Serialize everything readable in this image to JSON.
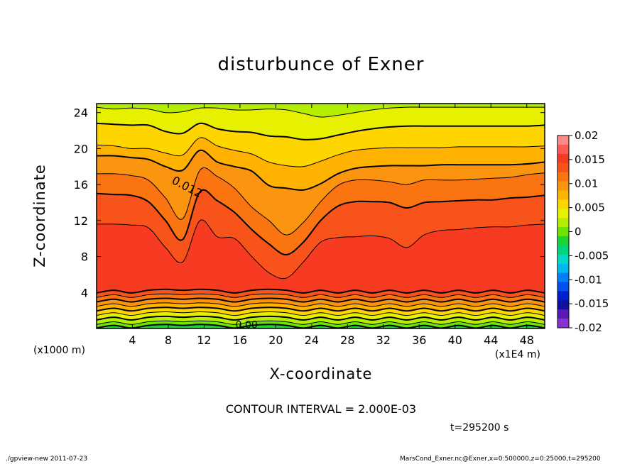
{
  "chart_data": {
    "type": "contour",
    "title": "disturbunce of Exner",
    "xlabel": "X-coordinate",
    "ylabel": "Z-coordinate",
    "x_unit_note": "(x1000 m)",
    "x_scale_note": "(x1E4 m)",
    "xlim": [
      0,
      50
    ],
    "ylim": [
      0,
      25
    ],
    "xticks": [
      4,
      8,
      12,
      16,
      20,
      24,
      28,
      32,
      36,
      40,
      44,
      48
    ],
    "yticks": [
      4,
      8,
      12,
      16,
      20,
      24
    ],
    "contour_labels": [
      "0.012",
      "0.00"
    ],
    "contour_interval": "CONTOUR INTERVAL = 2.000E-03",
    "time": "t=295200 s",
    "colorbar": {
      "ticks": [
        "0.02",
        "0.015",
        "0.01",
        "0.005",
        "0",
        "-0.005",
        "-0.01",
        "-0.015",
        "-0.02"
      ],
      "range": [
        -0.02,
        0.02
      ],
      "levels": [
        {
          "value": 0.02,
          "color": "#ff8a8a"
        },
        {
          "value": 0.018,
          "color": "#ff5a55"
        },
        {
          "value": 0.016,
          "color": "#f73a22"
        },
        {
          "value": 0.014,
          "color": "#f8531b"
        },
        {
          "value": 0.012,
          "color": "#fb7412"
        },
        {
          "value": 0.01,
          "color": "#fb9510"
        },
        {
          "value": 0.008,
          "color": "#ffb200"
        },
        {
          "value": 0.006,
          "color": "#ffd500"
        },
        {
          "value": 0.004,
          "color": "#e6f000"
        },
        {
          "value": 0.002,
          "color": "#b4ee00"
        },
        {
          "value": 0.0,
          "color": "#6ee400"
        },
        {
          "value": -0.002,
          "color": "#1cd432"
        },
        {
          "value": -0.004,
          "color": "#00d47a"
        },
        {
          "value": -0.006,
          "color": "#00d8c8"
        },
        {
          "value": -0.008,
          "color": "#00b8f0"
        },
        {
          "value": -0.01,
          "color": "#0080f8"
        },
        {
          "value": -0.012,
          "color": "#0050f0"
        },
        {
          "value": -0.014,
          "color": "#0020d0"
        },
        {
          "value": -0.016,
          "color": "#1010a0"
        },
        {
          "value": -0.018,
          "color": "#5a1ab8"
        },
        {
          "value": -0.02,
          "color": "#8a32d0"
        }
      ]
    },
    "surface_profiles": [
      {
        "level": 0.002,
        "z": [
          24.6,
          24.4,
          24.5,
          24.4,
          24.0,
          24.1,
          24.5,
          24.5,
          24.3,
          24.3,
          24.4,
          24.3,
          23.9,
          23.5,
          23.7,
          24.0,
          24.3,
          24.5,
          24.6,
          24.6,
          24.6,
          24.6,
          24.6,
          24.6,
          24.6,
          24.6,
          24.6
        ]
      },
      {
        "level": 0.004,
        "z": [
          22.8,
          22.7,
          22.6,
          22.6,
          21.9,
          21.7,
          22.8,
          22.2,
          21.9,
          21.8,
          21.4,
          21.3,
          21.0,
          21.1,
          21.5,
          21.9,
          22.2,
          22.4,
          22.5,
          22.5,
          22.5,
          22.5,
          22.5,
          22.5,
          22.5,
          22.5,
          22.6
        ]
      },
      {
        "level": 0.006,
        "z": [
          20.4,
          20.3,
          20.0,
          20.0,
          19.5,
          19.3,
          21.2,
          20.3,
          19.8,
          19.4,
          18.5,
          18.1,
          18.0,
          18.6,
          19.3,
          19.8,
          20.0,
          20.1,
          20.1,
          20.1,
          20.1,
          20.2,
          20.2,
          20.2,
          20.2,
          20.2,
          20.3
        ]
      },
      {
        "level": 0.008,
        "z": [
          19.2,
          19.2,
          19.0,
          18.8,
          18.0,
          17.6,
          19.8,
          18.5,
          18.0,
          17.5,
          15.9,
          15.6,
          15.4,
          16.1,
          17.2,
          17.8,
          18.0,
          18.1,
          18.1,
          18.1,
          18.2,
          18.2,
          18.2,
          18.2,
          18.2,
          18.3,
          18.5
        ]
      },
      {
        "level": 0.01,
        "z": [
          17.2,
          17.2,
          17.0,
          16.5,
          14.5,
          12.2,
          17.6,
          16.9,
          15.6,
          13.5,
          12.0,
          10.4,
          11.8,
          14.1,
          15.9,
          16.5,
          16.5,
          16.3,
          16.0,
          16.5,
          16.5,
          16.5,
          16.6,
          16.7,
          16.8,
          17.1,
          17.3
        ]
      },
      {
        "level": 0.012,
        "z": [
          15.0,
          14.9,
          14.8,
          14.1,
          12.0,
          9.9,
          15.2,
          14.2,
          12.9,
          11.0,
          9.4,
          8.2,
          9.6,
          12.0,
          13.6,
          14.1,
          14.1,
          14.0,
          13.4,
          14.0,
          14.1,
          14.2,
          14.3,
          14.3,
          14.5,
          14.6,
          14.8
        ]
      },
      {
        "level": 0.014,
        "z": [
          11.6,
          11.6,
          11.5,
          11.2,
          9.0,
          7.4,
          12.0,
          10.2,
          10.0,
          8.0,
          6.2,
          5.6,
          7.4,
          9.6,
          10.1,
          10.2,
          10.3,
          10.0,
          9.0,
          10.4,
          10.9,
          11.0,
          11.2,
          11.3,
          11.3,
          11.5,
          11.6
        ]
      }
    ],
    "lower_levels": [
      {
        "level": 0.014,
        "z": 4.1
      },
      {
        "level": 0.012,
        "z": 3.6
      },
      {
        "level": 0.01,
        "z": 3.1
      },
      {
        "level": 0.008,
        "z": 2.6
      },
      {
        "level": 0.006,
        "z": 2.1
      },
      {
        "level": 0.004,
        "z": 1.6
      },
      {
        "level": 0.002,
        "z": 1.1
      },
      {
        "level": 0.0,
        "z": 0.6
      },
      {
        "level": -0.002,
        "z": 0.2
      }
    ]
  },
  "footer": {
    "left": "./gpview-new   2011-07-23",
    "right": "MarsCond_Exner.nc@Exner,x=0:500000,z=0:25000,t=295200"
  }
}
